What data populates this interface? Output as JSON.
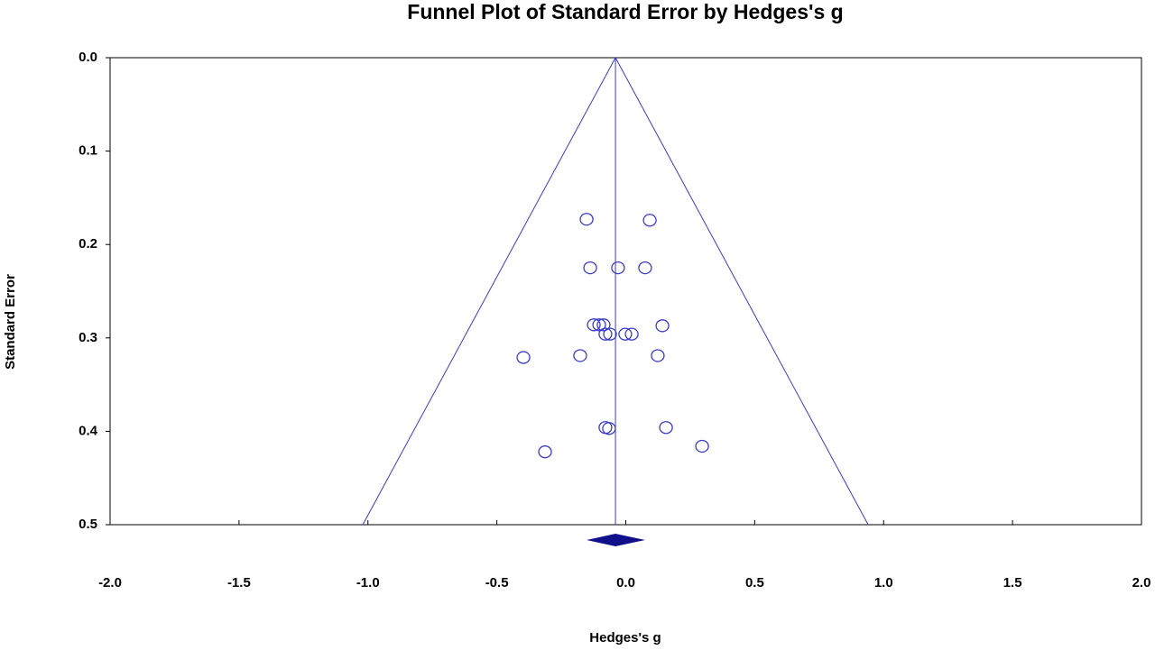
{
  "chart_data": {
    "type": "scatter",
    "title": "Funnel Plot of Standard Error by Hedges's g",
    "x_label": "Hedges's g",
    "y_label": "Standard Error",
    "color": "#3b3bc8",
    "x": [
      -0.152,
      0.093,
      -0.138,
      -0.03,
      0.075,
      -0.124,
      -0.103,
      -0.086,
      0.142,
      -0.079,
      -0.061,
      -0.002,
      0.023,
      -0.397,
      -0.177,
      0.124,
      -0.079,
      -0.065,
      0.156,
      0.296,
      -0.313
    ],
    "y": [
      0.173,
      0.174,
      0.225,
      0.225,
      0.225,
      0.286,
      0.286,
      0.286,
      0.287,
      0.296,
      0.296,
      0.296,
      0.296,
      0.321,
      0.319,
      0.319,
      0.396,
      0.397,
      0.396,
      0.416,
      0.422
    ],
    "funnel": {
      "apex": -0.04,
      "limits_at_max_se": [
        -1.02,
        0.94
      ],
      "color": "#3b3bc8"
    },
    "pooled_effect": {
      "estimate": -0.04,
      "ci": [
        -0.152,
        0.075
      ],
      "color": "#10108a"
    },
    "xlim": [
      -2,
      2
    ],
    "xticks": [
      {
        "value": -2,
        "label": "-2.0"
      },
      {
        "value": -1.5,
        "label": "-1.5"
      },
      {
        "value": -1,
        "label": "-1.0"
      },
      {
        "value": -0.5,
        "label": "-0.5"
      },
      {
        "value": 0,
        "label": "0.0"
      },
      {
        "value": 0.5,
        "label": "0.5"
      },
      {
        "value": 1,
        "label": "1.0"
      },
      {
        "value": 1.5,
        "label": "1.5"
      },
      {
        "value": 2,
        "label": "2.0"
      }
    ],
    "ylim": [
      0.5,
      0
    ],
    "yticks": [
      {
        "value": 0,
        "label": "0.0"
      },
      0.1,
      0.2,
      0.3,
      0.4,
      0.5
    ]
  }
}
